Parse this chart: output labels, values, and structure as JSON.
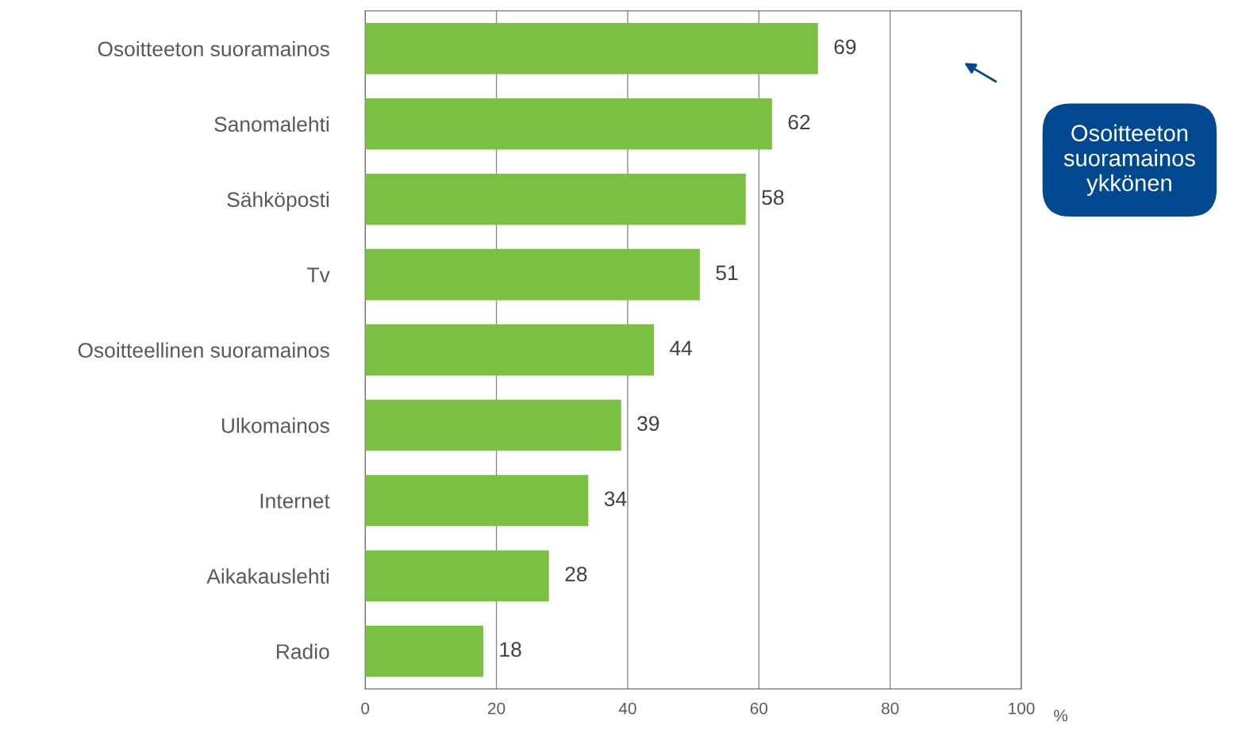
{
  "chart_data": {
    "type": "bar",
    "orientation": "horizontal",
    "categories": [
      "Osoitteeton suoramainos",
      "Sanomalehti",
      "Sähköposti",
      "Tv",
      "Osoitteellinen suoramainos",
      "Ulkomainos",
      "Internet",
      "Aikakauslehti",
      "Radio"
    ],
    "values": [
      69,
      62,
      58,
      51,
      44,
      39,
      34,
      28,
      18
    ],
    "color": "#7ac143",
    "xlim": [
      0,
      100
    ],
    "xticks": [
      0,
      20,
      40,
      60,
      80,
      100
    ],
    "xlabel": "%",
    "grid": "x",
    "data_labels": true,
    "annotations": [
      "Osoitteeton suoramainos ykkönen"
    ]
  }
}
